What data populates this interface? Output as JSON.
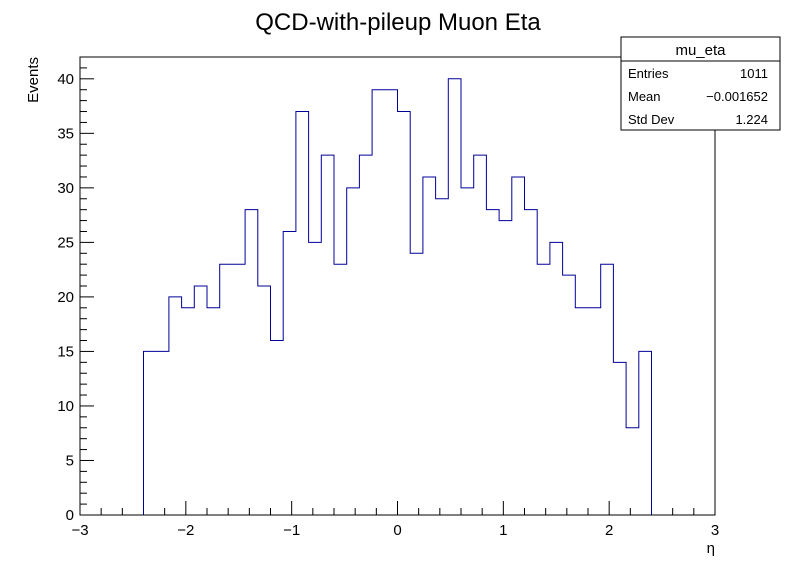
{
  "chart_data": {
    "type": "histogram",
    "title": "QCD-with-pileup Muon Eta",
    "xlabel": "η",
    "ylabel": "Events",
    "xlim": [
      -3,
      3
    ],
    "ylim": [
      0,
      42
    ],
    "x_ticks": [
      -3,
      -2,
      -1,
      0,
      1,
      2,
      3
    ],
    "x_tick_labels": [
      "−3",
      "−2",
      "−1",
      "0",
      "1",
      "2",
      "3"
    ],
    "y_ticks": [
      0,
      5,
      10,
      15,
      20,
      25,
      30,
      35,
      40
    ],
    "y_tick_labels": [
      "0",
      "5",
      "10",
      "15",
      "20",
      "25",
      "30",
      "35",
      "40"
    ],
    "bin_edges_start": -3,
    "bin_width": 0.12,
    "values": [
      0,
      0,
      0,
      0,
      0,
      15,
      15,
      20,
      19,
      21,
      19,
      23,
      23,
      28,
      21,
      16,
      26,
      37,
      25,
      33,
      23,
      30,
      33,
      39,
      39,
      37,
      24,
      31,
      29,
      40,
      30,
      33,
      28,
      27,
      31,
      28,
      23,
      25,
      22,
      19,
      19,
      23,
      14,
      8,
      15,
      0,
      0,
      0,
      0,
      0
    ],
    "line_color": "#000099",
    "grid": false,
    "stats_box": {
      "title": "mu_eta",
      "rows": [
        {
          "label": "Entries",
          "value": "1011"
        },
        {
          "label": "Mean",
          "value": "−0.001652"
        },
        {
          "label": "Std Dev",
          "value": "1.224"
        }
      ],
      "placement": "top-right"
    }
  }
}
